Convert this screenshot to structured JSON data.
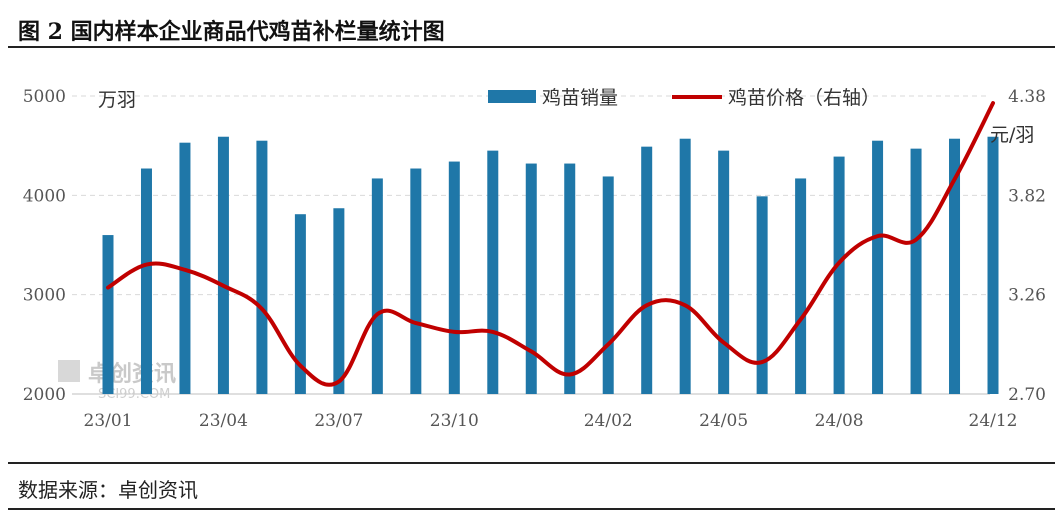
{
  "header": {
    "title": "图 2  国内样本企业商品代鸡苗补栏量统计图"
  },
  "footer": {
    "source": "数据来源：卓创资讯"
  },
  "watermark": {
    "text": "卓创资讯",
    "sub": "SCI99.COM"
  },
  "chart_data": {
    "type": "bar+line",
    "categories": [
      "23/01",
      "23/02",
      "23/03",
      "23/04",
      "23/05",
      "23/06",
      "23/07",
      "23/08",
      "23/09",
      "23/10",
      "23/11",
      "23/12",
      "24/01",
      "24/02",
      "24/03",
      "24/04",
      "24/05",
      "24/06",
      "24/07",
      "24/08",
      "24/09",
      "24/10",
      "24/11",
      "24/12"
    ],
    "x_tick_labels": [
      "23/01",
      "23/04",
      "23/07",
      "23/10",
      "24/02",
      "24/05",
      "24/08",
      "24/12"
    ],
    "series": [
      {
        "name": "鸡苗销量",
        "type": "bar",
        "axis": "left",
        "color": "#1f77a8",
        "values": [
          3600,
          4270,
          4530,
          4590,
          4550,
          3810,
          3870,
          4170,
          4270,
          4340,
          4450,
          4320,
          4320,
          4190,
          4490,
          4570,
          4450,
          3990,
          4170,
          4390,
          4550,
          4470,
          4570,
          4590
        ]
      },
      {
        "name": "鸡苗价格（右轴）",
        "type": "line",
        "axis": "right",
        "color": "#c00000",
        "values": [
          3.3,
          3.43,
          3.4,
          3.31,
          3.18,
          2.86,
          2.77,
          3.15,
          3.1,
          3.05,
          3.05,
          2.94,
          2.81,
          2.98,
          3.2,
          3.2,
          2.99,
          2.88,
          3.12,
          3.44,
          3.59,
          3.57,
          3.91,
          4.34
        ]
      }
    ],
    "y_left": {
      "unit": "万羽",
      "min": 2000,
      "max": 5000,
      "ticks": [
        "2000",
        "3000",
        "4000",
        "5000"
      ]
    },
    "y_right": {
      "unit": "元/羽",
      "min": 2.7,
      "max": 4.38,
      "ticks": [
        "2.70",
        "3.26",
        "3.82",
        "4.38"
      ]
    },
    "grid": true,
    "legend_position": "top-right"
  }
}
